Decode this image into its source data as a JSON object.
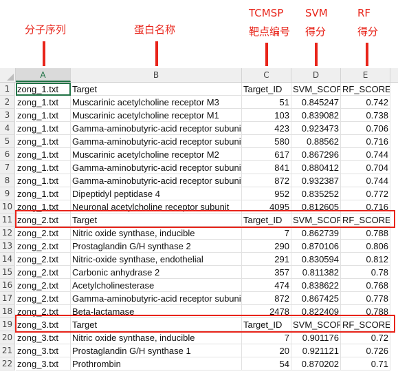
{
  "annotations": {
    "col_a": "分子序列",
    "col_b": "蛋白名称",
    "col_c_line1": "TCMSP",
    "col_c_line2": "靶点编号",
    "col_d_line1": "SVM",
    "col_d_line2": "得分",
    "col_e_line1": "RF",
    "col_e_line2": "得分"
  },
  "columns": [
    "A",
    "B",
    "C",
    "D",
    "E"
  ],
  "rows": [
    {
      "n": "1",
      "a": "zong_1.txt",
      "b": "Target",
      "c": "Target_ID",
      "d": "SVM_SCORE",
      "e": "RF_SCORE"
    },
    {
      "n": "2",
      "a": "zong_1.txt",
      "b": "Muscarinic acetylcholine receptor M3",
      "c": "51",
      "d": "0.845247",
      "e": "0.742"
    },
    {
      "n": "3",
      "a": "zong_1.txt",
      "b": "Muscarinic acetylcholine receptor M1",
      "c": "103",
      "d": "0.839082",
      "e": "0.738"
    },
    {
      "n": "4",
      "a": "zong_1.txt",
      "b": "Gamma-aminobutyric-acid receptor subunit",
      "c": "423",
      "d": "0.923473",
      "e": "0.706"
    },
    {
      "n": "5",
      "a": "zong_1.txt",
      "b": "Gamma-aminobutyric-acid receptor subunit",
      "c": "580",
      "d": "0.88562",
      "e": "0.716"
    },
    {
      "n": "6",
      "a": "zong_1.txt",
      "b": "Muscarinic acetylcholine receptor M2",
      "c": "617",
      "d": "0.867296",
      "e": "0.744"
    },
    {
      "n": "7",
      "a": "zong_1.txt",
      "b": "Gamma-aminobutyric-acid receptor subunit",
      "c": "841",
      "d": "0.880412",
      "e": "0.704"
    },
    {
      "n": "8",
      "a": "zong_1.txt",
      "b": "Gamma-aminobutyric-acid receptor subunit",
      "c": "872",
      "d": "0.932387",
      "e": "0.744"
    },
    {
      "n": "9",
      "a": "zong_1.txt",
      "b": "Dipeptidyl peptidase 4",
      "c": "952",
      "d": "0.835252",
      "e": "0.772"
    },
    {
      "n": "10",
      "a": "zong_1.txt",
      "b": "Neuronal acetylcholine receptor subunit",
      "c": "4095",
      "d": "0.812605",
      "e": "0.716"
    },
    {
      "n": "11",
      "a": "zong_2.txt",
      "b": "Target",
      "c": "Target_ID",
      "d": "SVM_SCORE",
      "e": "RF_SCORE"
    },
    {
      "n": "12",
      "a": "zong_2.txt",
      "b": "Nitric oxide synthase, inducible",
      "c": "7",
      "d": "0.862739",
      "e": "0.788"
    },
    {
      "n": "13",
      "a": "zong_2.txt",
      "b": "Prostaglandin G/H synthase 2",
      "c": "290",
      "d": "0.870106",
      "e": "0.806"
    },
    {
      "n": "14",
      "a": "zong_2.txt",
      "b": "Nitric-oxide synthase, endothelial",
      "c": "291",
      "d": "0.830594",
      "e": "0.812"
    },
    {
      "n": "15",
      "a": "zong_2.txt",
      "b": "Carbonic anhydrase 2",
      "c": "357",
      "d": "0.811382",
      "e": "0.78"
    },
    {
      "n": "16",
      "a": "zong_2.txt",
      "b": "Acetylcholinesterase",
      "c": "474",
      "d": "0.838622",
      "e": "0.768"
    },
    {
      "n": "17",
      "a": "zong_2.txt",
      "b": "Gamma-aminobutyric-acid receptor subunit",
      "c": "872",
      "d": "0.867425",
      "e": "0.778"
    },
    {
      "n": "18",
      "a": "zong_2.txt",
      "b": "Beta-lactamase",
      "c": "2478",
      "d": "0.822409",
      "e": "0.788"
    },
    {
      "n": "19",
      "a": "zong_3.txt",
      "b": "Target",
      "c": "Target_ID",
      "d": "SVM_SCORE",
      "e": "RF_SCORE"
    },
    {
      "n": "20",
      "a": "zong_3.txt",
      "b": "Nitric oxide synthase, inducible",
      "c": "7",
      "d": "0.901176",
      "e": "0.72"
    },
    {
      "n": "21",
      "a": "zong_3.txt",
      "b": "Prostaglandin G/H synthase 1",
      "c": "20",
      "d": "0.921121",
      "e": "0.726"
    },
    {
      "n": "22",
      "a": "zong_3.txt",
      "b": "Prothrombin",
      "c": "54",
      "d": "0.870202",
      "e": "0.71"
    }
  ],
  "colors": {
    "annotation": "#e8241a",
    "selection": "#217346"
  }
}
